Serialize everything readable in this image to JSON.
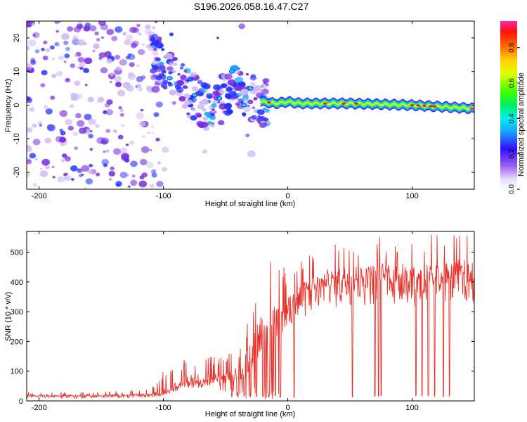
{
  "title": "S196.2026.058.16.47.C27",
  "colors": {
    "snr_line": "#e8332b",
    "spec_low": "#cfb9f4",
    "spec_mid": "#7a2de0",
    "spec_high": "#2030ff"
  },
  "chart_data": [
    {
      "type": "heatmap",
      "title": "S196.2026.058.16.47.C27",
      "xlabel": "Height of straight line (km)",
      "ylabel": "Frequency (Hz)",
      "xlim": [
        -210,
        150
      ],
      "ylim": [
        -25,
        25
      ],
      "xticks": [
        -200,
        -100,
        0,
        100
      ],
      "yticks": [
        -20,
        -10,
        0,
        10,
        20
      ],
      "ridge": {
        "x": [
          -110,
          -100,
          -80,
          -60,
          -45,
          -30,
          -20,
          -10,
          0,
          10,
          50,
          100,
          150
        ],
        "freq": [
          18,
          10,
          4,
          -3,
          6,
          2,
          1,
          0.5,
          1,
          0.5,
          0.5,
          0,
          -1
        ],
        "amplitude": [
          0.2,
          0.2,
          0.25,
          0.25,
          0.3,
          0.35,
          0.45,
          0.5,
          0.55,
          0.55,
          0.55,
          0.6,
          0.65
        ]
      },
      "colorbar": {
        "label": "Normalized spectral amplitude",
        "range": [
          0.0,
          0.95
        ],
        "ticks": [
          "0.0",
          "0.2",
          "0.4",
          "0.6",
          "0.8"
        ]
      }
    },
    {
      "type": "line",
      "xlabel": "Height of straight line (km)",
      "ylabel": "SNR (10 * v/v)",
      "xlim": [
        -210,
        150
      ],
      "ylim": [
        0,
        570
      ],
      "xticks": [
        -200,
        -100,
        0,
        100
      ],
      "yticks": [
        0,
        100,
        200,
        300,
        400,
        500
      ],
      "series": [
        {
          "name": "SNR",
          "x": [
            -210,
            -150,
            -110,
            -100,
            -90,
            -80,
            -60,
            -40,
            -30,
            -20,
            -10,
            0,
            10,
            20,
            40,
            60,
            80,
            100,
            120,
            150
          ],
          "baseline": [
            15,
            15,
            18,
            25,
            45,
            55,
            65,
            85,
            120,
            210,
            260,
            300,
            340,
            370,
            390,
            400,
            405,
            395,
            410,
            410
          ],
          "peak": [
            30,
            30,
            40,
            100,
            125,
            150,
            150,
            170,
            330,
            510,
            460,
            445,
            480,
            500,
            530,
            545,
            555,
            560,
            560,
            560
          ]
        }
      ],
      "dropouts_x": [
        -45,
        -40,
        -35,
        -30,
        -25,
        -20,
        -15,
        -10,
        -6,
        5,
        52,
        70,
        73,
        75,
        103,
        108,
        113,
        118,
        125,
        130
      ]
    }
  ]
}
